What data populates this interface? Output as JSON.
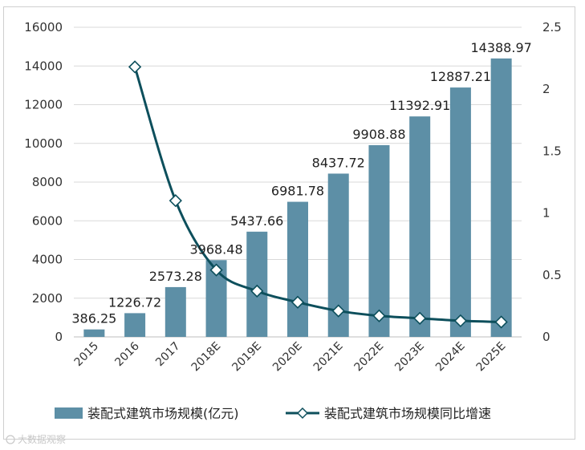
{
  "chart_data": {
    "type": "bar",
    "categories": [
      "2015",
      "2016",
      "2017",
      "2018E",
      "2019E",
      "2020E",
      "2021E",
      "2022E",
      "2023E",
      "2024E",
      "2025E"
    ],
    "series": [
      {
        "name": "装配式建筑市场规模(亿元)",
        "type": "bar",
        "axis": "left",
        "values": [
          386.25,
          1226.72,
          2573.28,
          3968.48,
          5437.66,
          6981.78,
          8437.72,
          9908.88,
          11392.91,
          12887.21,
          14388.97
        ],
        "labels": [
          "386.25",
          "1226.72",
          "2573.28",
          "3968.48",
          "5437.66",
          "6981.78",
          "8437.72",
          "9908.88",
          "11392.91",
          "12887.21",
          "14388.97"
        ],
        "color": "#5d8fa6"
      },
      {
        "name": "装配式建筑市场规模同比增速",
        "type": "line",
        "axis": "right",
        "values": [
          null,
          2.18,
          1.1,
          0.54,
          0.37,
          0.28,
          0.21,
          0.17,
          0.15,
          0.13,
          0.12
        ],
        "color": "#0d4f5c"
      }
    ],
    "left_axis": {
      "min": 0,
      "max": 16000,
      "ticks": [
        0,
        2000,
        4000,
        6000,
        8000,
        10000,
        12000,
        14000,
        16000
      ],
      "tick_labels": [
        "0",
        "2000",
        "4000",
        "6000",
        "8000",
        "10000",
        "12000",
        "14000",
        "16000"
      ]
    },
    "right_axis": {
      "min": 0,
      "max": 2.5,
      "ticks": [
        0,
        0.5,
        1,
        1.5,
        2,
        2.5
      ],
      "tick_labels": [
        "0",
        "0.5",
        "1",
        "1.5",
        "2",
        "2.5"
      ]
    },
    "grid": true,
    "legend_position": "bottom",
    "title": "",
    "xlabel": "",
    "ylabel": ""
  },
  "watermark": "大数据观察"
}
